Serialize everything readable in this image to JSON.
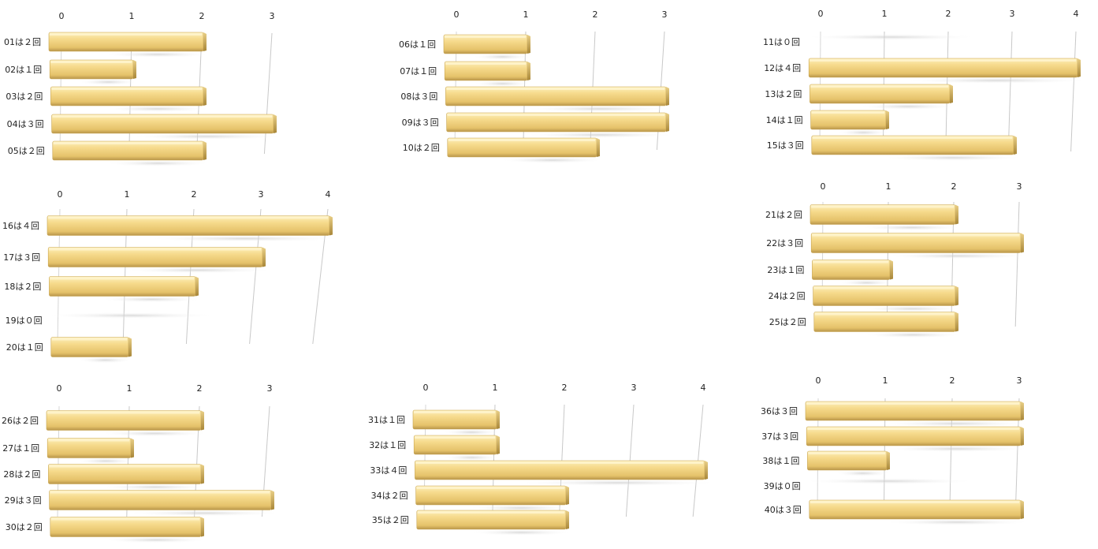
{
  "colors": {
    "bar_top": "#fbeaa6",
    "bar_mid": "#f4d47e",
    "bar_bottom": "#c9a550",
    "bar_end": "#b89646",
    "grid": "#c8c8c8"
  },
  "chart_data": [
    {
      "type": "bar",
      "orientation": "horizontal",
      "categories": [
        "01は２回",
        "02は１回",
        "03は２回",
        "04は３回",
        "05は２回"
      ],
      "values": [
        2,
        1,
        2,
        3,
        2
      ],
      "ticks": [
        "0",
        "1",
        "2",
        "3"
      ],
      "xlim": [
        0,
        3
      ]
    },
    {
      "type": "bar",
      "orientation": "horizontal",
      "categories": [
        "06は１回",
        "07は１回",
        "08は３回",
        "09は３回",
        "10は２回"
      ],
      "values": [
        1,
        1,
        3,
        3,
        2
      ],
      "ticks": [
        "0",
        "1",
        "2",
        "3"
      ],
      "xlim": [
        0,
        3
      ]
    },
    {
      "type": "bar",
      "orientation": "horizontal",
      "categories": [
        "11は０回",
        "12は４回",
        "13は２回",
        "14は１回",
        "15は３回"
      ],
      "values": [
        0,
        4,
        2,
        1,
        3
      ],
      "ticks": [
        "0",
        "1",
        "2",
        "3",
        "4"
      ],
      "xlim": [
        0,
        4
      ]
    },
    {
      "type": "bar",
      "orientation": "horizontal",
      "categories": [
        "16は４回",
        "17は３回",
        "18は２回",
        "19は０回",
        "20は１回"
      ],
      "values": [
        4,
        3,
        2,
        0,
        1
      ],
      "ticks": [
        "0",
        "1",
        "2",
        "3",
        "4"
      ],
      "xlim": [
        0,
        4
      ]
    },
    {
      "type": "bar",
      "orientation": "horizontal",
      "categories": [
        "21は２回",
        "22は３回",
        "23は１回",
        "24は２回",
        "25は２回"
      ],
      "values": [
        2,
        3,
        1,
        2,
        2
      ],
      "ticks": [
        "0",
        "1",
        "2",
        "3"
      ],
      "xlim": [
        0,
        3
      ]
    },
    {
      "type": "bar",
      "orientation": "horizontal",
      "categories": [
        "26は２回",
        "27は１回",
        "28は２回",
        "29は３回",
        "30は２回"
      ],
      "values": [
        2,
        1,
        2,
        3,
        2
      ],
      "ticks": [
        "0",
        "1",
        "2",
        "3"
      ],
      "xlim": [
        0,
        3
      ]
    },
    {
      "type": "bar",
      "orientation": "horizontal",
      "categories": [
        "31は１回",
        "32は１回",
        "33は４回",
        "34は２回",
        "35は２回"
      ],
      "values": [
        1,
        1,
        4,
        2,
        2
      ],
      "ticks": [
        "0",
        "1",
        "2",
        "3",
        "4"
      ],
      "xlim": [
        0,
        4
      ]
    },
    {
      "type": "bar",
      "orientation": "horizontal",
      "categories": [
        "36は３回",
        "37は３回",
        "38は１回",
        "39は０回",
        "40は３回"
      ],
      "values": [
        3,
        3,
        1,
        0,
        3
      ],
      "ticks": [
        "0",
        "1",
        "2",
        "3"
      ],
      "xlim": [
        0,
        3
      ]
    }
  ]
}
